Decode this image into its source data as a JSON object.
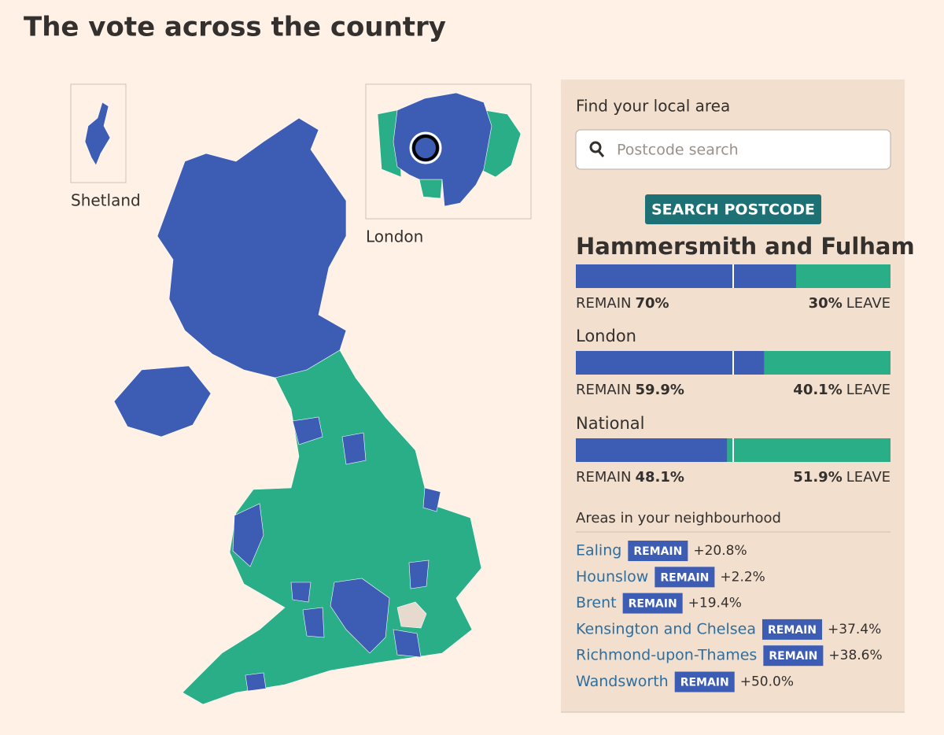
{
  "header": {
    "title": "The vote across the country"
  },
  "map": {
    "insets": [
      "Shetland",
      "London"
    ]
  },
  "colors": {
    "remain": "#3d5db4",
    "leave": "#2aae88"
  },
  "panel": {
    "find_label": "Find your local area",
    "search_placeholder": "Postcode search",
    "search_button": "SEARCH POSTCODE",
    "results": [
      {
        "name": "Hammersmith and Fulham",
        "remain_label": "REMAIN",
        "remain": {
          "value": 70,
          "label": "70%"
        },
        "leave": {
          "value": 30,
          "label": "30%"
        },
        "leave_label": "LEAVE"
      },
      {
        "name": "London",
        "remain_label": "REMAIN",
        "remain": {
          "value": 59.9,
          "label": "59.9%"
        },
        "leave": {
          "value": 40.1,
          "label": "40.1%"
        },
        "leave_label": "LEAVE"
      },
      {
        "name": "National",
        "remain_label": "REMAIN",
        "remain": {
          "value": 48.1,
          "label": "48.1%"
        },
        "leave": {
          "value": 51.9,
          "label": "51.9%"
        },
        "leave_label": "LEAVE"
      }
    ],
    "neighbourhood": {
      "title": "Areas in your neighbourhood",
      "rows": [
        {
          "name": "Ealing",
          "badge": "REMAIN",
          "margin": "+20.8%"
        },
        {
          "name": "Hounslow",
          "badge": "REMAIN",
          "margin": "+2.2%"
        },
        {
          "name": "Brent",
          "badge": "REMAIN",
          "margin": "+19.4%"
        },
        {
          "name": "Kensington and Chelsea",
          "badge": "REMAIN",
          "margin": "+37.4%"
        },
        {
          "name": "Richmond-upon-Thames",
          "badge": "REMAIN",
          "margin": "+38.6%"
        },
        {
          "name": "Wandsworth",
          "badge": "REMAIN",
          "margin": "+50.0%"
        }
      ]
    }
  }
}
